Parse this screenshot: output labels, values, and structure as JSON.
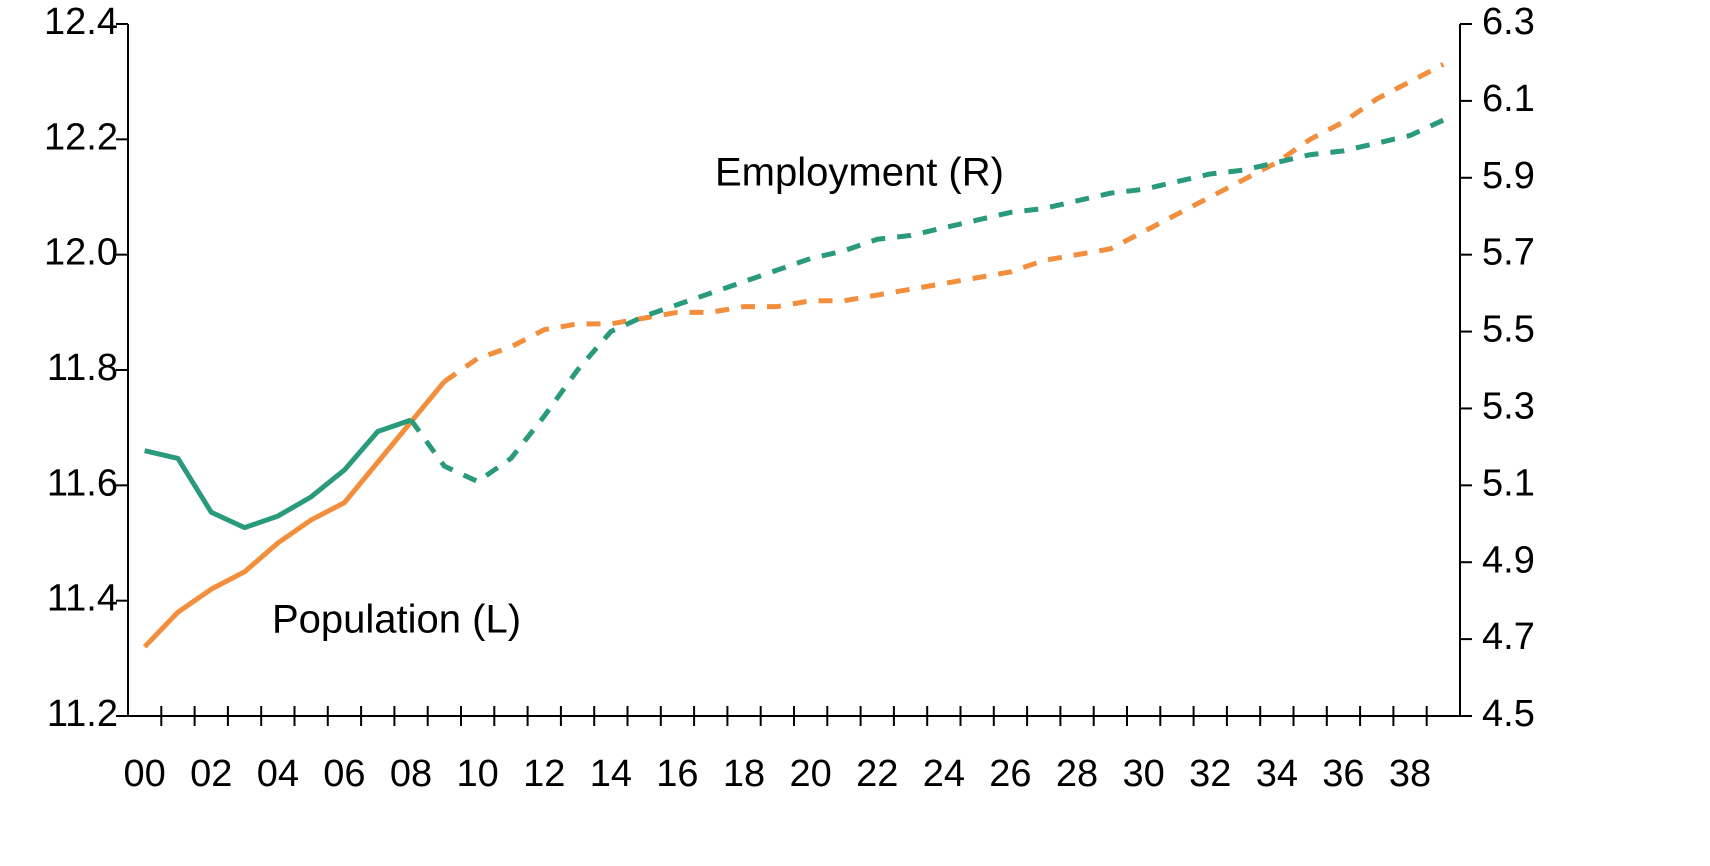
{
  "chart_data": {
    "type": "line",
    "categories": [
      "00",
      null,
      "02",
      null,
      "04",
      null,
      "06",
      null,
      "08",
      null,
      "10",
      null,
      "12",
      null,
      "14",
      null,
      "16",
      null,
      "18",
      null,
      "20",
      null,
      "22",
      null,
      "24",
      null,
      "26",
      null,
      "28",
      null,
      "30",
      null,
      "32",
      null,
      "34",
      null,
      "36",
      null,
      "38",
      null
    ],
    "series": [
      {
        "name": "Population (L)",
        "color": "#f28e3c",
        "axis": "y",
        "dashed_from": 9,
        "values": [
          11.32,
          11.38,
          11.42,
          11.45,
          11.5,
          11.54,
          11.57,
          11.64,
          11.71,
          11.78,
          11.82,
          11.84,
          11.87,
          11.88,
          11.88,
          11.89,
          11.9,
          11.9,
          11.91,
          11.91,
          11.92,
          11.92,
          11.93,
          11.94,
          11.95,
          11.96,
          11.97,
          11.99,
          12.0,
          12.01,
          12.04,
          12.07,
          12.1,
          12.13,
          12.16,
          12.2,
          12.23,
          12.27,
          12.3,
          12.33
        ]
      },
      {
        "name": "Employment (R)",
        "color": "#2a9a7c",
        "axis": "y2",
        "dashed_from": 8,
        "values": [
          5.19,
          5.17,
          5.03,
          4.99,
          5.02,
          5.07,
          5.14,
          5.24,
          5.27,
          5.15,
          5.11,
          5.17,
          5.28,
          5.4,
          5.5,
          5.54,
          5.57,
          5.6,
          5.63,
          5.66,
          5.69,
          5.71,
          5.74,
          5.75,
          5.77,
          5.79,
          5.81,
          5.82,
          5.84,
          5.86,
          5.87,
          5.89,
          5.91,
          5.92,
          5.94,
          5.96,
          5.97,
          5.99,
          6.01,
          6.05
        ]
      }
    ],
    "ylim": [
      11.2,
      12.4
    ],
    "yticks": [
      {
        "value": 11.2,
        "label": "11.2"
      },
      11.4,
      11.6,
      11.8,
      {
        "value": 12.0,
        "label": "12.0"
      },
      12.2,
      12.4
    ],
    "y2lim": [
      4.5,
      6.3
    ],
    "y2ticks": [
      4.5,
      4.7,
      4.9,
      5.1,
      5.3,
      5.5,
      5.7,
      5.9,
      6.1,
      6.3
    ],
    "grid": false
  }
}
